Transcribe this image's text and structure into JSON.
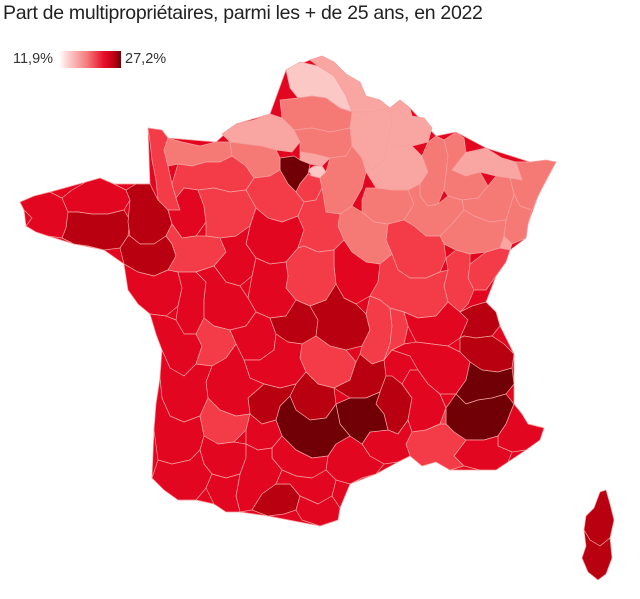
{
  "title": "Part de multipropriétaires, parmi les + de 25 ans, en 2022",
  "legend": {
    "min_label": "11,9%",
    "max_label": "27,2%",
    "min_value": 11.9,
    "max_value": 27.2,
    "color_low": "#ffffff",
    "color_mid": "#e8102c",
    "color_high": "#6b0008"
  },
  "chart_data": {
    "type": "choropleth",
    "title": "Part de multipropriétaires, parmi les + de 25 ans, en 2022",
    "unit": "%",
    "scale": {
      "min": 11.9,
      "max": 27.2
    },
    "palette": {
      "very_light": "#fcc8c6",
      "light": "#f9a5a1",
      "light_mid": "#f57a76",
      "mid": "#f43c48",
      "strong": "#e30621",
      "dark": "#b80010",
      "darkest": "#700006"
    },
    "regions_visual": [
      {
        "name": "Nord",
        "shade": "very_light"
      },
      {
        "name": "Pas-de-Calais",
        "shade": "light"
      },
      {
        "name": "Somme",
        "shade": "light_mid"
      },
      {
        "name": "Aisne",
        "shade": "light"
      },
      {
        "name": "Ardennes",
        "shade": "light"
      },
      {
        "name": "Seine-Maritime",
        "shade": "light"
      },
      {
        "name": "Oise",
        "shade": "light_mid"
      },
      {
        "name": "Val-d'Oise",
        "shade": "light"
      },
      {
        "name": "Paris / petite couronne",
        "shade": "very_light"
      },
      {
        "name": "Yvelines",
        "shade": "darkest"
      },
      {
        "name": "Essonne",
        "shade": "mid"
      },
      {
        "name": "Seine-et-Marne",
        "shade": "light_mid"
      },
      {
        "name": "Marne",
        "shade": "light"
      },
      {
        "name": "Meuse",
        "shade": "light_mid"
      },
      {
        "name": "Moselle",
        "shade": "light"
      },
      {
        "name": "Meurthe-et-Moselle",
        "shade": "light_mid"
      },
      {
        "name": "Bas-Rhin",
        "shade": "light_mid"
      },
      {
        "name": "Haut-Rhin",
        "shade": "light_mid"
      },
      {
        "name": "Territoire de Belfort",
        "shade": "light"
      },
      {
        "name": "Vosges",
        "shade": "light_mid"
      },
      {
        "name": "Aube",
        "shade": "light_mid"
      },
      {
        "name": "Haute-Marne",
        "shade": "light_mid"
      },
      {
        "name": "Haute-Saône",
        "shade": "light_mid"
      },
      {
        "name": "Doubs",
        "shade": "mid"
      },
      {
        "name": "Jura",
        "shade": "mid"
      },
      {
        "name": "Côte-d'Or",
        "shade": "mid"
      },
      {
        "name": "Yonne",
        "shade": "light_mid"
      },
      {
        "name": "Manche",
        "shade": "mid"
      },
      {
        "name": "Calvados",
        "shade": "light_mid"
      },
      {
        "name": "Orne",
        "shade": "mid"
      },
      {
        "name": "Eure",
        "shade": "light_mid"
      },
      {
        "name": "Eure-et-Loir",
        "shade": "mid"
      },
      {
        "name": "Finistère",
        "shade": "strong"
      },
      {
        "name": "Côtes-d'Armor",
        "shade": "strong"
      },
      {
        "name": "Morbihan",
        "shade": "dark"
      },
      {
        "name": "Ille-et-Vilaine",
        "shade": "dark"
      },
      {
        "name": "Loire-Atlantique",
        "shade": "dark"
      },
      {
        "name": "Mayenne",
        "shade": "strong"
      },
      {
        "name": "Sarthe",
        "shade": "mid"
      },
      {
        "name": "Maine-et-Loire",
        "shade": "mid"
      },
      {
        "name": "Loir-et-Cher",
        "shade": "strong"
      },
      {
        "name": "Loiret",
        "shade": "mid"
      },
      {
        "name": "Indre-et-Loire",
        "shade": "strong"
      },
      {
        "name": "Nièvre",
        "shade": "strong"
      },
      {
        "name": "Cher",
        "shade": "mid"
      },
      {
        "name": "Indre",
        "shade": "strong"
      },
      {
        "name": "Vendée",
        "shade": "strong"
      },
      {
        "name": "Deux-Sèvres",
        "shade": "strong"
      },
      {
        "name": "Vienne",
        "shade": "strong"
      },
      {
        "name": "Charente-Maritime",
        "shade": "strong"
      },
      {
        "name": "Charente",
        "shade": "mid"
      },
      {
        "name": "Haute-Vienne",
        "shade": "strong"
      },
      {
        "name": "Creuse",
        "shade": "dark"
      },
      {
        "name": "Allier",
        "shade": "dark"
      },
      {
        "name": "Saône-et-Loire",
        "shade": "mid"
      },
      {
        "name": "Puy-de-Dôme",
        "shade": "mid"
      },
      {
        "name": "Loire",
        "shade": "mid"
      },
      {
        "name": "Rhône",
        "shade": "mid"
      },
      {
        "name": "Ain",
        "shade": "strong"
      },
      {
        "name": "Haute-Savoie",
        "shade": "dark"
      },
      {
        "name": "Savoie",
        "shade": "dark"
      },
      {
        "name": "Isère",
        "shade": "strong"
      },
      {
        "name": "Corrèze",
        "shade": "strong"
      },
      {
        "name": "Cantal",
        "shade": "dark"
      },
      {
        "name": "Haute-Loire",
        "shade": "dark"
      },
      {
        "name": "Ardèche",
        "shade": "dark"
      },
      {
        "name": "Drôme",
        "shade": "strong"
      },
      {
        "name": "Hautes-Alpes",
        "shade": "darkest"
      },
      {
        "name": "Alpes-de-Haute-Provence",
        "shade": "darkest"
      },
      {
        "name": "Alpes-Maritimes",
        "shade": "strong"
      },
      {
        "name": "Var",
        "shade": "strong"
      },
      {
        "name": "Bouches-du-Rhône",
        "shade": "mid"
      },
      {
        "name": "Vaucluse",
        "shade": "mid"
      },
      {
        "name": "Gard",
        "shade": "strong"
      },
      {
        "name": "Hérault",
        "shade": "strong"
      },
      {
        "name": "Lozère",
        "shade": "darkest"
      },
      {
        "name": "Aveyron",
        "shade": "darkest"
      },
      {
        "name": "Lot",
        "shade": "dark"
      },
      {
        "name": "Dordogne",
        "shade": "strong"
      },
      {
        "name": "Gironde",
        "shade": "strong"
      },
      {
        "name": "Lot-et-Garonne",
        "shade": "mid"
      },
      {
        "name": "Tarn-et-Garonne",
        "shade": "strong"
      },
      {
        "name": "Tarn",
        "shade": "strong"
      },
      {
        "name": "Landes",
        "shade": "strong"
      },
      {
        "name": "Gers",
        "shade": "strong"
      },
      {
        "name": "Haute-Garonne",
        "shade": "strong"
      },
      {
        "name": "Pyrénées-Atlantiques",
        "shade": "strong"
      },
      {
        "name": "Hautes-Pyrénées",
        "shade": "strong"
      },
      {
        "name": "Ariège",
        "shade": "dark"
      },
      {
        "name": "Aude",
        "shade": "strong"
      },
      {
        "name": "Pyrénées-Orientales",
        "shade": "strong"
      },
      {
        "name": "Haute-Corse",
        "shade": "dark"
      },
      {
        "name": "Corse-du-Sud",
        "shade": "dark"
      }
    ]
  }
}
